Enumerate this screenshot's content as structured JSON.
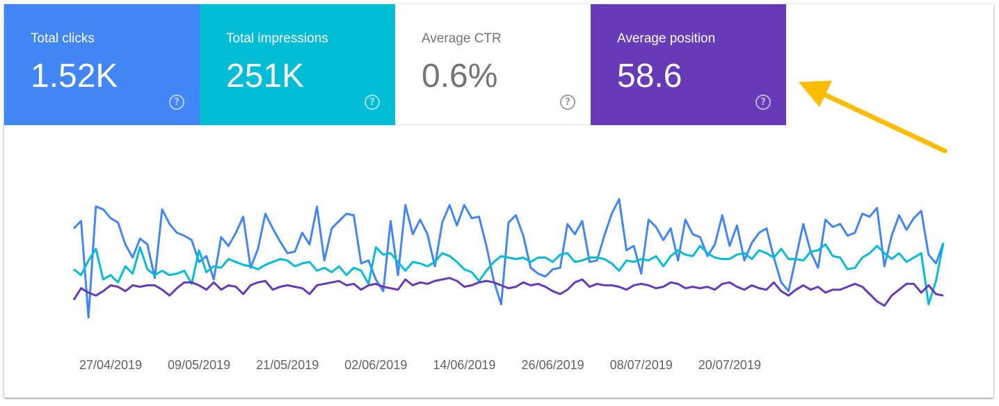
{
  "colors": {
    "clicks": "#4285f4",
    "impressions": "#00bcd4",
    "ctr_card_text": "#757575",
    "position": "#673ab7",
    "annotation_arrow": "#fbbc04",
    "axis_text": "#616161"
  },
  "icons": {
    "help": "help-circle-icon",
    "annotation": "arrow-icon"
  },
  "cards": [
    {
      "label": "Total clicks",
      "value": "1.52K",
      "help": "?"
    },
    {
      "label": "Total impressions",
      "value": "251K",
      "help": "?"
    },
    {
      "label": "Average CTR",
      "value": "0.6%",
      "help": "?"
    },
    {
      "label": "Average position",
      "value": "58.6",
      "help": "?"
    }
  ],
  "chart_data": {
    "type": "line",
    "title": "",
    "xlabel": "",
    "ylabel": "",
    "grid": false,
    "x_ticks": [
      "27/04/2019",
      "09/05/2019",
      "21/05/2019",
      "02/06/2019",
      "14/06/2019",
      "26/06/2019",
      "08/07/2019",
      "20/07/2019"
    ],
    "x_start": "2019-04-22",
    "y_range": [
      0,
      100
    ],
    "y_axis_visible": false,
    "series": [
      {
        "name": "Total clicks",
        "color": "#4285f4",
        "values": [
          75,
          80,
          14,
          90,
          88,
          82,
          79,
          64,
          55,
          68,
          64,
          41,
          88,
          78,
          72,
          70,
          67,
          52,
          56,
          40,
          69,
          63,
          72,
          83,
          48,
          61,
          85,
          75,
          66,
          58,
          59,
          72,
          64,
          90,
          53,
          75,
          80,
          85,
          84,
          51,
          53,
          40,
          32,
          80,
          43,
          91,
          71,
          81,
          71,
          49,
          79,
          91,
          77,
          91,
          82,
          83,
          63,
          39,
          23,
          79,
          84,
          70,
          48,
          44,
          42,
          47,
          48,
          78,
          71,
          80,
          52,
          53,
          70,
          85,
          95,
          60,
          63,
          44,
          81,
          76,
          67,
          75,
          53,
          81,
          71,
          69,
          56,
          64,
          84,
          63,
          77,
          53,
          65,
          72,
          75,
          55,
          38,
          32,
          55,
          78,
          59,
          48,
          81,
          76,
          78,
          70,
          72,
          85,
          83,
          89,
          49,
          70,
          84,
          74,
          82,
          87,
          57,
          51,
          65
        ]
      },
      {
        "name": "Total impressions",
        "color": "#00bcd4",
        "values": [
          47,
          43,
          53,
          61,
          40,
          43,
          38,
          49,
          44,
          62,
          47,
          43,
          46,
          43,
          44,
          46,
          37,
          60,
          45,
          49,
          48,
          54,
          52,
          50,
          49,
          47,
          50,
          52,
          54,
          53,
          49,
          51,
          52,
          46,
          48,
          45,
          49,
          43,
          48,
          46,
          37,
          62,
          57,
          58,
          52,
          46,
          52,
          51,
          49,
          52,
          58,
          56,
          52,
          47,
          45,
          39,
          46,
          52,
          56,
          55,
          54,
          55,
          52,
          55,
          55,
          52,
          57,
          58,
          52,
          53,
          55,
          55,
          54,
          51,
          46,
          53,
          52,
          54,
          53,
          56,
          49,
          56,
          60,
          57,
          56,
          63,
          58,
          55,
          54,
          54,
          57,
          58,
          54,
          60,
          58,
          55,
          61,
          54,
          54,
          53,
          59,
          60,
          64,
          56,
          55,
          47,
          48,
          55,
          58,
          63,
          58,
          54,
          58,
          52,
          55,
          58,
          23,
          39,
          65
        ]
      },
      {
        "name": "Average position",
        "color": "#673ab7",
        "values": [
          26,
          34,
          31,
          29,
          32,
          36,
          35,
          32,
          36,
          35,
          36,
          36,
          33,
          29,
          34,
          38,
          38,
          36,
          33,
          38,
          33,
          36,
          35,
          30,
          36,
          38,
          39,
          33,
          35,
          36,
          35,
          34,
          30,
          36,
          37,
          38,
          39,
          36,
          37,
          33,
          36,
          37,
          35,
          34,
          33,
          40,
          36,
          38,
          37,
          39,
          40,
          41,
          39,
          35,
          36,
          38,
          39,
          38,
          36,
          34,
          35,
          38,
          36,
          37,
          35,
          32,
          30,
          33,
          38,
          40,
          35,
          37,
          36,
          36,
          35,
          33,
          36,
          37,
          36,
          34,
          35,
          38,
          37,
          34,
          35,
          34,
          35,
          33,
          37,
          38,
          35,
          33,
          36,
          34,
          33,
          38,
          32,
          29,
          33,
          36,
          33,
          35,
          31,
          33,
          33,
          35,
          37,
          35,
          30,
          25,
          22,
          29,
          33,
          37,
          37,
          31,
          36,
          30,
          29
        ]
      }
    ]
  }
}
